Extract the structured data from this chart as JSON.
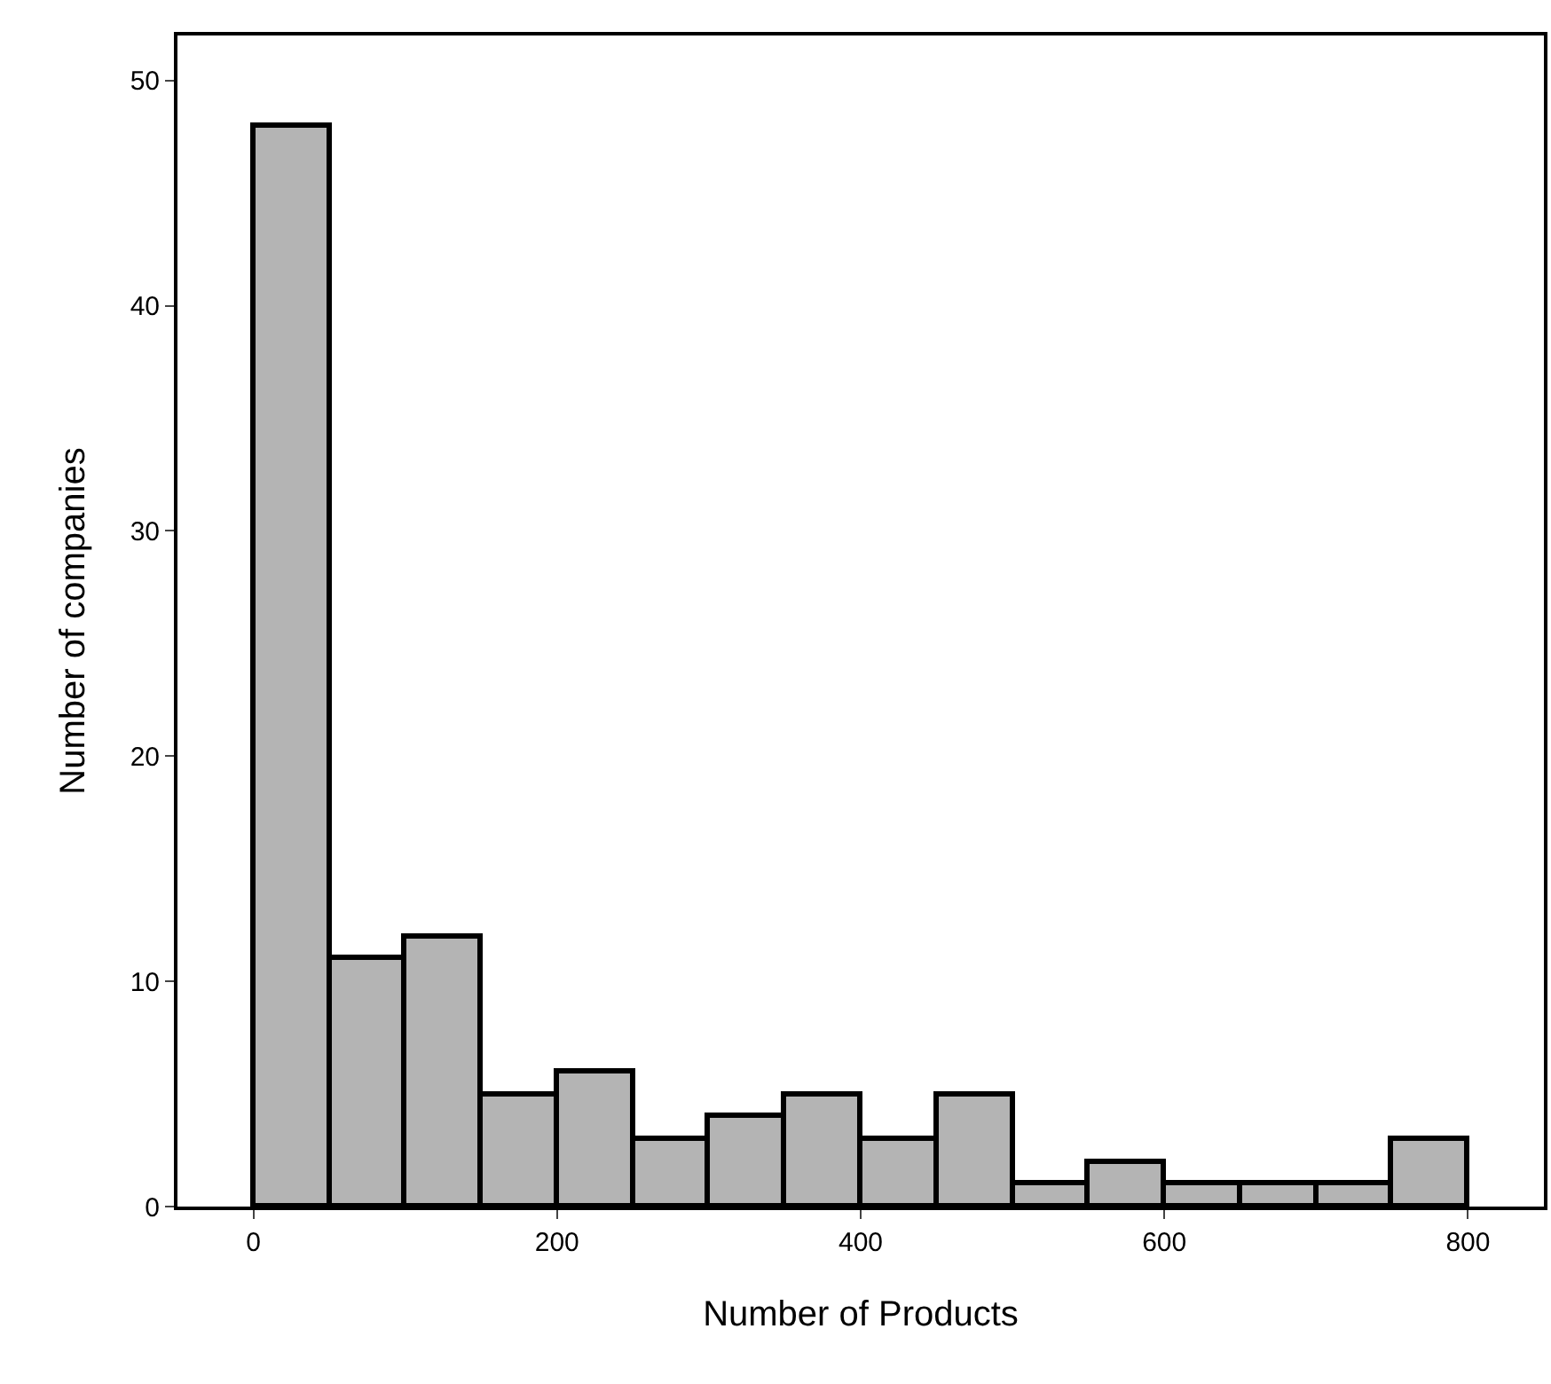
{
  "chart_data": {
    "type": "histogram",
    "xlabel": "Number of Products",
    "ylabel": "Number of companies",
    "bins": [
      0,
      50,
      100,
      150,
      200,
      250,
      300,
      350,
      400,
      450,
      500,
      550,
      600,
      650,
      700,
      750,
      800
    ],
    "values": [
      48,
      11,
      12,
      5,
      6,
      3,
      4,
      5,
      3,
      5,
      1,
      2,
      1,
      1,
      1,
      3
    ],
    "color": "#b4b4b4",
    "xlim": [
      -50,
      850
    ],
    "xticks": [
      0,
      200,
      400,
      600,
      800
    ],
    "ylim": [
      0,
      52
    ],
    "yticks": [
      0,
      10,
      20,
      30,
      40,
      50
    ],
    "grid": false,
    "legend": false
  }
}
